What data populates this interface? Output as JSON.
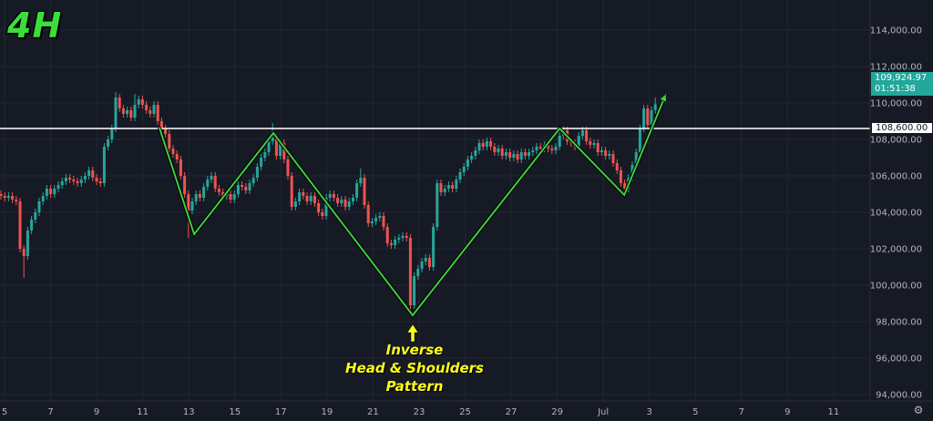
{
  "timeframe_label": "4H",
  "annotation": {
    "line1": "Inverse",
    "line2": "Head & Shoulders",
    "line3": "Pattern"
  },
  "price_labels": {
    "last_price": "109,924.97",
    "countdown": "01:51:38",
    "horizontal_line": "108,600.00"
  },
  "colors": {
    "background": "#161a25",
    "grid": "#222633",
    "up": "#26a69a",
    "down": "#ef5350",
    "pattern_line": "#3fce3f",
    "annotation": "#ffff1a",
    "level_line": "#ffffff"
  },
  "icons": {
    "settings": "gear-icon"
  },
  "chart_data": {
    "type": "candlestick",
    "interval": "4H",
    "yaxis_ticks": [
      "114,000.00",
      "112,000.00",
      "110,000.00",
      "108,000.00",
      "106,000.00",
      "104,000.00",
      "102,000.00",
      "100,000.00",
      "98,000.00",
      "96,000.00",
      "94,000.00"
    ],
    "yaxis_tick_values": [
      114000,
      112000,
      110000,
      108000,
      106000,
      104000,
      102000,
      100000,
      98000,
      96000,
      94000
    ],
    "ylim": [
      93500,
      116000
    ],
    "xaxis_ticks": [
      "5",
      "7",
      "9",
      "11",
      "13",
      "15",
      "17",
      "19",
      "21",
      "23",
      "25",
      "27",
      "29",
      "Jul",
      "3",
      "5",
      "7",
      "9",
      "11"
    ],
    "grid": true,
    "horizontal_level": 108600,
    "last_price": 109924.97,
    "closes": [
      104900,
      104800,
      104900,
      104700,
      104600,
      102000,
      101600,
      103000,
      103600,
      104000,
      104600,
      104900,
      105300,
      105000,
      105300,
      105500,
      105700,
      105900,
      105800,
      105700,
      105600,
      105800,
      106000,
      106300,
      105900,
      105700,
      105600,
      107600,
      108000,
      108600,
      110300,
      109700,
      109400,
      109600,
      109200,
      109900,
      110200,
      109900,
      109600,
      109400,
      109900,
      109000,
      108600,
      108300,
      107500,
      107200,
      106900,
      106000,
      105000,
      104100,
      104600,
      105000,
      104800,
      105400,
      105800,
      106000,
      105300,
      105100,
      104900,
      105000,
      104700,
      105000,
      105500,
      105400,
      105200,
      105600,
      105900,
      106500,
      107000,
      107300,
      107900,
      108100,
      107100,
      107800,
      106900,
      106000,
      104300,
      104600,
      105100,
      104900,
      104600,
      104900,
      104500,
      104000,
      103800,
      104800,
      105000,
      104800,
      104500,
      104700,
      104300,
      104600,
      104800,
      105600,
      105900,
      104400,
      103400,
      103500,
      103700,
      103800,
      103200,
      102300,
      102200,
      102500,
      102600,
      102700,
      102600,
      98900,
      100500,
      100900,
      101300,
      101500,
      101000,
      103200,
      105600,
      105100,
      105300,
      105500,
      105300,
      105800,
      106200,
      106500,
      106900,
      107100,
      107400,
      107800,
      107600,
      107900,
      107600,
      107300,
      107500,
      107100,
      107300,
      107000,
      107200,
      106900,
      107300,
      107100,
      107300,
      107400,
      107600,
      107500,
      107700,
      107500,
      107400,
      107600,
      108200,
      108500,
      107900,
      107800,
      107600,
      108200,
      108500,
      107900,
      107700,
      107800,
      107300,
      107400,
      107100,
      107200,
      106700,
      106300,
      105600,
      105300,
      105900,
      106600,
      107300,
      108600,
      109700,
      108800,
      109600,
      109925
    ],
    "wick_extremes": [
      {
        "candle": 6,
        "low": 100400
      },
      {
        "candle": 30,
        "high": 110600
      },
      {
        "candle": 35,
        "high": 110500
      },
      {
        "candle": 49,
        "low": 102600
      },
      {
        "candle": 71,
        "high": 108900
      },
      {
        "candle": 94,
        "high": 106400
      },
      {
        "candle": 107,
        "low": 98600
      },
      {
        "candle": 171,
        "high": 110300
      }
    ],
    "pattern_points": [
      {
        "candle": 41.4,
        "price": 108650
      },
      {
        "candle": 50.5,
        "price": 102800
      },
      {
        "candle": 71.2,
        "price": 108350
      },
      {
        "candle": 107.6,
        "price": 98350
      },
      {
        "candle": 146,
        "price": 108600
      },
      {
        "candle": 162.9,
        "price": 104950
      },
      {
        "candle": 173.8,
        "price": 110500
      }
    ]
  }
}
